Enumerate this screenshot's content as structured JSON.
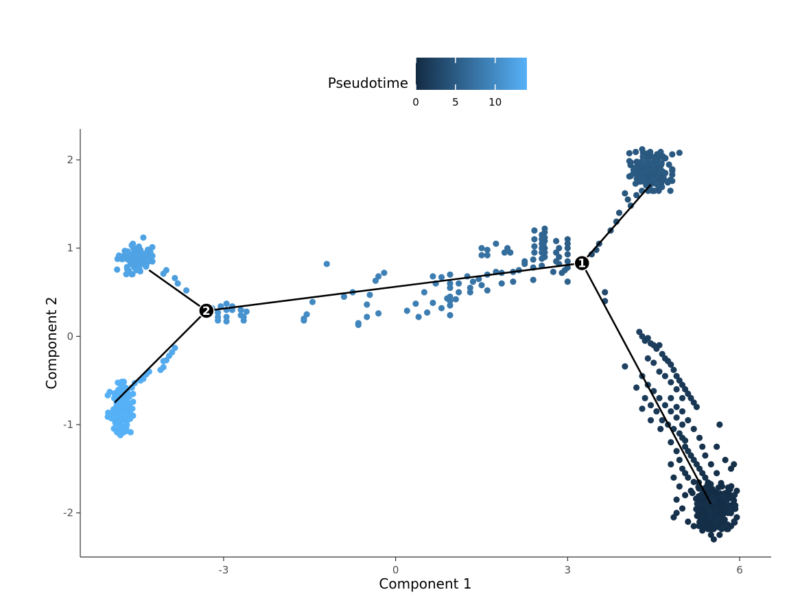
{
  "chart_data": {
    "type": "scatter",
    "title": "",
    "xlabel": "Component 1",
    "ylabel": "Component 2",
    "xlim": [
      -5.5,
      6.55
    ],
    "ylim": [
      -2.5,
      2.35
    ],
    "x_ticks": [
      -3,
      0,
      3,
      6
    ],
    "y_ticks": [
      -2,
      -1,
      0,
      1,
      2
    ],
    "x_tick_labels": [
      "-3",
      "0",
      "3",
      "6"
    ],
    "y_tick_labels": [
      "-2",
      "-1",
      "0",
      "1",
      "2"
    ],
    "grid": false,
    "legend": {
      "title": "Pseudotime",
      "placement": "top",
      "type": "colorbar",
      "range": [
        0,
        14
      ],
      "ticks": [
        0,
        5,
        10
      ],
      "tick_labels": [
        "0",
        "5",
        "10"
      ],
      "color_low": "#132B43",
      "color_high": "#56B1F7"
    },
    "trajectory": {
      "nodes": [
        {
          "x": 3.25,
          "y": 0.83
        },
        {
          "x": -3.3,
          "y": 0.29
        },
        {
          "x": 4.45,
          "y": 1.72
        },
        {
          "x": 5.5,
          "y": -1.9
        },
        {
          "x": -4.3,
          "y": 0.75
        },
        {
          "x": -4.9,
          "y": -0.75
        }
      ],
      "edges": [
        [
          0,
          1
        ],
        [
          0,
          2
        ],
        [
          0,
          3
        ],
        [
          1,
          4
        ],
        [
          1,
          5
        ]
      ]
    },
    "branch_points": [
      {
        "label": "1",
        "x": 3.25,
        "y": 0.83
      },
      {
        "label": "2",
        "x": -3.3,
        "y": 0.29
      }
    ],
    "clusters": [
      {
        "cx": 4.45,
        "cy": 1.87,
        "sx": 0.17,
        "sy": 0.1,
        "n": 200,
        "pt": 4.8
      },
      {
        "cx": -4.55,
        "cy": 0.88,
        "sx": 0.14,
        "sy": 0.08,
        "n": 130,
        "pt": 12.6
      },
      {
        "cx": -4.8,
        "cy": -0.8,
        "sx": 0.1,
        "sy": 0.13,
        "n": 160,
        "pt": 14.0
      },
      {
        "cx": 5.55,
        "cy": -1.92,
        "sx": 0.17,
        "sy": 0.12,
        "n": 280,
        "pt": 0.4
      }
    ],
    "points": [
      [
        4.2,
        1.6,
        4.4
      ],
      [
        4.05,
        1.55,
        4.3
      ],
      [
        4.1,
        1.48,
        4.2
      ],
      [
        3.9,
        1.4,
        4.1
      ],
      [
        3.85,
        1.3,
        4.0
      ],
      [
        3.75,
        1.2,
        3.9
      ],
      [
        3.55,
        1.05,
        3.8
      ],
      [
        3.5,
        0.98,
        3.7
      ],
      [
        3.42,
        0.93,
        3.6
      ],
      [
        4.95,
        2.08,
        4.8
      ],
      [
        4.3,
        2.12,
        4.8
      ],
      [
        4.0,
        1.62,
        4.5
      ],
      [
        3.0,
        1.1,
        5.2
      ],
      [
        3.0,
        1.05,
        5.2
      ],
      [
        3.0,
        1.0,
        5.3
      ],
      [
        3.0,
        0.93,
        5.3
      ],
      [
        3.0,
        0.85,
        5.4
      ],
      [
        3.0,
        0.78,
        5.5
      ],
      [
        2.95,
        0.75,
        5.6
      ],
      [
        3.0,
        0.62,
        5.6
      ],
      [
        2.9,
        0.72,
        5.7
      ],
      [
        2.85,
        1.0,
        5.6
      ],
      [
        2.85,
        0.9,
        5.6
      ],
      [
        2.85,
        0.82,
        5.7
      ],
      [
        2.8,
        1.08,
        5.7
      ],
      [
        2.8,
        0.95,
        5.8
      ],
      [
        2.8,
        0.85,
        5.8
      ],
      [
        2.75,
        0.73,
        5.9
      ],
      [
        2.6,
        1.22,
        5.9
      ],
      [
        2.6,
        1.18,
        5.9
      ],
      [
        2.6,
        1.12,
        6.0
      ],
      [
        2.6,
        1.08,
        6.0
      ],
      [
        2.6,
        1.0,
        6.0
      ],
      [
        2.6,
        0.95,
        6.1
      ],
      [
        2.6,
        0.9,
        6.1
      ],
      [
        2.58,
        1.04,
        6.1
      ],
      [
        2.55,
        1.15,
        6.2
      ],
      [
        2.55,
        1.1,
        6.2
      ],
      [
        2.55,
        1.05,
        6.2
      ],
      [
        2.55,
        1.0,
        6.2
      ],
      [
        2.55,
        0.95,
        6.3
      ],
      [
        2.55,
        0.88,
        6.3
      ],
      [
        2.55,
        0.8,
        6.3
      ],
      [
        2.42,
        1.2,
        6.4
      ],
      [
        2.42,
        1.1,
        6.4
      ],
      [
        2.42,
        1.02,
        6.4
      ],
      [
        2.42,
        0.95,
        6.5
      ],
      [
        2.4,
        0.87,
        6.5
      ],
      [
        2.4,
        0.78,
        6.5
      ],
      [
        2.4,
        0.64,
        6.6
      ],
      [
        2.25,
        0.85,
        6.7
      ],
      [
        2.25,
        0.82,
        6.7
      ],
      [
        2.15,
        0.75,
        6.8
      ],
      [
        2.05,
        0.73,
        6.9
      ],
      [
        2.05,
        0.62,
        6.9
      ],
      [
        2.0,
        0.95,
        7.0
      ],
      [
        1.95,
        1.0,
        7.0
      ],
      [
        1.9,
        0.95,
        7.1
      ],
      [
        1.85,
        0.72,
        7.1
      ],
      [
        1.85,
        0.6,
        7.2
      ],
      [
        1.75,
        1.05,
        7.2
      ],
      [
        1.75,
        0.73,
        7.3
      ],
      [
        1.6,
        0.98,
        7.4
      ],
      [
        1.6,
        0.92,
        7.4
      ],
      [
        1.6,
        0.7,
        7.5
      ],
      [
        1.6,
        0.52,
        7.5
      ],
      [
        1.5,
        1.0,
        7.5
      ],
      [
        1.5,
        0.92,
        7.6
      ],
      [
        1.45,
        0.65,
        7.6
      ],
      [
        1.5,
        0.58,
        7.6
      ],
      [
        1.35,
        0.62,
        7.8
      ],
      [
        1.25,
        0.68,
        7.9
      ],
      [
        1.3,
        0.55,
        7.9
      ],
      [
        1.3,
        0.5,
        7.9
      ],
      [
        1.1,
        0.6,
        8.0
      ],
      [
        1.1,
        0.5,
        8.0
      ],
      [
        1.05,
        0.42,
        8.1
      ],
      [
        0.95,
        0.7,
        8.2
      ],
      [
        0.95,
        0.6,
        8.2
      ],
      [
        0.95,
        0.55,
        8.2
      ],
      [
        0.95,
        0.45,
        8.3
      ],
      [
        0.95,
        0.4,
        8.3
      ],
      [
        0.95,
        0.35,
        8.3
      ],
      [
        0.95,
        0.24,
        8.4
      ],
      [
        0.9,
        0.43,
        8.4
      ],
      [
        0.8,
        0.67,
        8.5
      ],
      [
        0.8,
        0.32,
        8.5
      ],
      [
        0.7,
        0.6,
        8.6
      ],
      [
        0.65,
        0.68,
        8.6
      ],
      [
        0.65,
        0.38,
        8.6
      ],
      [
        0.55,
        0.27,
        8.7
      ],
      [
        0.5,
        0.5,
        8.7
      ],
      [
        0.4,
        0.22,
        8.8
      ],
      [
        0.35,
        0.37,
        8.8
      ],
      [
        0.2,
        0.29,
        8.9
      ],
      [
        -0.2,
        0.72,
        9.0
      ],
      [
        -0.3,
        0.68,
        9.1
      ],
      [
        -0.35,
        0.63,
        9.1
      ],
      [
        -0.45,
        0.47,
        9.2
      ],
      [
        -0.3,
        0.26,
        9.2
      ],
      [
        -0.5,
        0.36,
        9.2
      ],
      [
        -0.5,
        0.22,
        9.3
      ],
      [
        -0.65,
        0.15,
        9.4
      ],
      [
        -0.65,
        0.13,
        9.4
      ],
      [
        -0.75,
        0.5,
        9.5
      ],
      [
        -0.9,
        0.45,
        9.5
      ],
      [
        -1.2,
        0.82,
        9.8
      ],
      [
        -1.45,
        0.39,
        9.9
      ],
      [
        -1.55,
        0.25,
        10.0
      ],
      [
        -1.6,
        0.2,
        10.0
      ],
      [
        -1.6,
        0.18,
        10.0
      ],
      [
        -2.6,
        0.28,
        10.8
      ],
      [
        -2.65,
        0.22,
        10.8
      ],
      [
        -2.65,
        0.18,
        10.9
      ],
      [
        -2.7,
        0.24,
        10.9
      ],
      [
        -2.7,
        0.3,
        10.9
      ],
      [
        -2.85,
        0.34,
        11.0
      ],
      [
        -2.85,
        0.3,
        11.0
      ],
      [
        -2.95,
        0.37,
        11.0
      ],
      [
        -2.95,
        0.3,
        11.1
      ],
      [
        -2.95,
        0.22,
        11.1
      ],
      [
        -2.95,
        0.17,
        11.1
      ],
      [
        -3.05,
        0.34,
        11.2
      ],
      [
        -3.1,
        0.27,
        11.2
      ],
      [
        -3.1,
        0.22,
        11.2
      ],
      [
        -3.1,
        0.18,
        11.3
      ],
      [
        -3.2,
        0.32,
        11.3
      ],
      [
        -3.65,
        0.52,
        11.8
      ],
      [
        -3.8,
        0.6,
        11.9
      ],
      [
        -3.85,
        0.66,
        12.0
      ],
      [
        -4.05,
        0.71,
        12.1
      ],
      [
        -4.0,
        0.75,
        12.1
      ],
      [
        -4.4,
        1.12,
        12.4
      ],
      [
        -3.85,
        -0.13,
        13.0
      ],
      [
        -3.9,
        -0.18,
        13.1
      ],
      [
        -3.95,
        -0.22,
        13.1
      ],
      [
        -4.0,
        -0.27,
        13.2
      ],
      [
        -4.05,
        -0.28,
        13.2
      ],
      [
        -4.05,
        -0.35,
        13.3
      ],
      [
        -4.1,
        -0.38,
        13.3
      ],
      [
        -4.3,
        -0.4,
        13.5
      ],
      [
        -4.35,
        -0.43,
        13.5
      ],
      [
        -4.4,
        -0.48,
        13.6
      ],
      [
        -4.45,
        -0.5,
        13.6
      ],
      [
        -4.55,
        -0.53,
        13.7
      ],
      [
        -4.6,
        -0.58,
        13.7
      ],
      [
        -4.8,
        -1.12,
        14.0
      ],
      [
        3.65,
        0.5,
        3.2
      ],
      [
        3.65,
        0.4,
        3.1
      ],
      [
        4.0,
        -0.34,
        2.4
      ],
      [
        4.25,
        0.05,
        2.2
      ],
      [
        4.3,
        0.0,
        2.2
      ],
      [
        4.35,
        -0.05,
        2.1
      ],
      [
        4.4,
        -0.02,
        2.1
      ],
      [
        4.45,
        -0.08,
        2.0
      ],
      [
        4.5,
        -0.1,
        2.0
      ],
      [
        4.55,
        -0.14,
        1.9
      ],
      [
        4.6,
        -0.1,
        1.9
      ],
      [
        4.65,
        -0.2,
        1.8
      ],
      [
        4.7,
        -0.25,
        1.8
      ],
      [
        4.75,
        -0.28,
        1.7
      ],
      [
        4.8,
        -0.32,
        1.7
      ],
      [
        4.85,
        -0.38,
        1.6
      ],
      [
        4.9,
        -0.45,
        1.6
      ],
      [
        4.95,
        -0.5,
        1.5
      ],
      [
        5.0,
        -0.55,
        1.5
      ],
      [
        5.05,
        -0.6,
        1.4
      ],
      [
        5.1,
        -0.65,
        1.4
      ],
      [
        5.15,
        -0.7,
        1.3
      ],
      [
        5.2,
        -0.75,
        1.3
      ],
      [
        5.25,
        -0.8,
        1.2
      ],
      [
        4.4,
        -0.25,
        2.0
      ],
      [
        4.5,
        -0.3,
        1.9
      ],
      [
        4.6,
        -0.4,
        1.8
      ],
      [
        4.7,
        -0.45,
        1.7
      ],
      [
        4.8,
        -0.52,
        1.6
      ],
      [
        4.9,
        -0.6,
        1.5
      ],
      [
        5.0,
        -0.7,
        1.4
      ],
      [
        4.3,
        -0.45,
        1.9
      ],
      [
        4.4,
        -0.55,
        1.8
      ],
      [
        4.5,
        -0.62,
        1.7
      ],
      [
        4.6,
        -0.7,
        1.6
      ],
      [
        4.7,
        -0.78,
        1.5
      ],
      [
        4.8,
        -0.85,
        1.4
      ],
      [
        4.9,
        -0.92,
        1.3
      ],
      [
        5.0,
        -1.0,
        1.2
      ],
      [
        4.35,
        -0.7,
        1.7
      ],
      [
        4.45,
        -0.78,
        1.6
      ],
      [
        4.55,
        -0.85,
        1.5
      ],
      [
        4.65,
        -0.95,
        1.4
      ],
      [
        4.75,
        -1.0,
        1.3
      ],
      [
        4.85,
        -1.05,
        1.2
      ],
      [
        4.95,
        -1.1,
        1.1
      ],
      [
        5.05,
        -1.18,
        1.0
      ],
      [
        4.2,
        -0.58,
        1.8
      ],
      [
        4.3,
        -0.82,
        1.6
      ],
      [
        4.45,
        -0.95,
        1.5
      ],
      [
        4.62,
        -1.05,
        1.3
      ],
      [
        4.8,
        -0.7,
        1.5
      ],
      [
        4.9,
        -0.8,
        1.4
      ],
      [
        5.0,
        -0.85,
        1.3
      ],
      [
        5.1,
        -0.95,
        1.2
      ],
      [
        5.0,
        -1.15,
        1.0
      ],
      [
        5.05,
        -1.25,
        0.9
      ],
      [
        5.1,
        -1.3,
        0.9
      ],
      [
        5.15,
        -1.35,
        0.8
      ],
      [
        5.2,
        -1.4,
        0.8
      ],
      [
        5.25,
        -1.45,
        0.7
      ],
      [
        5.3,
        -1.5,
        0.7
      ],
      [
        5.35,
        -1.55,
        0.6
      ],
      [
        5.4,
        -1.6,
        0.6
      ],
      [
        4.8,
        -1.2,
        1.0
      ],
      [
        4.9,
        -1.3,
        0.9
      ],
      [
        4.95,
        -1.4,
        0.8
      ],
      [
        5.0,
        -1.5,
        0.8
      ],
      [
        5.05,
        -1.55,
        0.7
      ],
      [
        5.1,
        -1.6,
        0.7
      ],
      [
        5.2,
        -1.65,
        0.6
      ],
      [
        5.2,
        -1.05,
        1.0
      ],
      [
        5.3,
        -1.15,
        0.9
      ],
      [
        5.35,
        -1.25,
        0.8
      ],
      [
        5.4,
        -1.35,
        0.7
      ],
      [
        5.5,
        -1.45,
        0.6
      ],
      [
        5.6,
        -1.55,
        0.5
      ],
      [
        4.8,
        -1.45,
        0.9
      ],
      [
        4.85,
        -1.6,
        0.8
      ],
      [
        4.95,
        -1.7,
        0.7
      ],
      [
        4.9,
        -1.85,
        0.7
      ],
      [
        4.9,
        -2.0,
        0.6
      ],
      [
        4.85,
        -2.05,
        0.6
      ],
      [
        5.65,
        -1.0,
        0.9
      ],
      [
        5.6,
        -1.25,
        0.7
      ],
      [
        5.75,
        -1.4,
        0.6
      ],
      [
        5.85,
        -1.5,
        0.5
      ],
      [
        5.9,
        -1.45,
        0.5
      ],
      [
        5.95,
        -1.75,
        0.4
      ],
      [
        5.95,
        -2.05,
        0.3
      ],
      [
        5.85,
        -2.15,
        0.3
      ],
      [
        5.65,
        -2.25,
        0.3
      ],
      [
        5.55,
        -2.3,
        0.3
      ],
      [
        5.5,
        -2.25,
        0.3
      ],
      [
        5.35,
        -2.2,
        0.3
      ],
      [
        5.2,
        -2.15,
        0.3
      ],
      [
        5.1,
        -2.1,
        0.3
      ],
      [
        5.0,
        -1.95,
        0.4
      ],
      [
        5.05,
        -1.8,
        0.4
      ],
      [
        5.15,
        -1.75,
        0.4
      ]
    ]
  }
}
